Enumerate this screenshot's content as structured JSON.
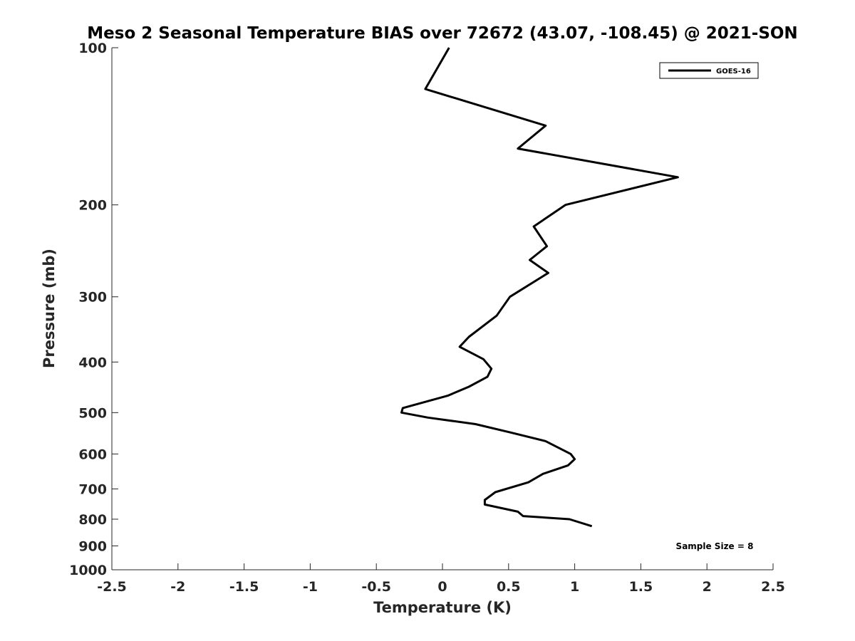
{
  "chart_data": {
    "type": "line",
    "title": "Meso 2 Seasonal Temperature BIAS over 72672 (43.07, -108.45) @ 2021-SON",
    "xlabel": "Temperature (K)",
    "ylabel": "Pressure (mb)",
    "xlim": [
      -2.5,
      2.5
    ],
    "ylim": [
      100,
      1000
    ],
    "yscale": "log",
    "y_reversed": true,
    "x_ticks": [
      "-2.5",
      "-2",
      "-1.5",
      "-1",
      "-0.5",
      "0",
      "0.5",
      "1",
      "1.5",
      "2",
      "2.5"
    ],
    "y_ticks": [
      "100",
      "200",
      "300",
      "400",
      "500",
      "600",
      "700",
      "800",
      "900",
      "1000"
    ],
    "grid": false,
    "legend_position": "top-right",
    "series": [
      {
        "name": "GOES-16",
        "color": "#000000",
        "points": [
          [
            1.13,
            825
          ],
          [
            0.96,
            800
          ],
          [
            0.61,
            789
          ],
          [
            0.57,
            774
          ],
          [
            0.32,
            750
          ],
          [
            0.32,
            735
          ],
          [
            0.4,
            710
          ],
          [
            0.65,
            680
          ],
          [
            0.76,
            655
          ],
          [
            0.95,
            631
          ],
          [
            1.0,
            614
          ],
          [
            0.97,
            600
          ],
          [
            0.78,
            567
          ],
          [
            0.52,
            546
          ],
          [
            0.25,
            526
          ],
          [
            -0.11,
            511
          ],
          [
            -0.31,
            500
          ],
          [
            -0.3,
            490
          ],
          [
            0.04,
            464
          ],
          [
            0.2,
            446
          ],
          [
            0.34,
            427
          ],
          [
            0.37,
            412
          ],
          [
            0.31,
            395
          ],
          [
            0.13,
            374
          ],
          [
            0.2,
            358
          ],
          [
            0.41,
            326
          ],
          [
            0.51,
            300
          ],
          [
            0.8,
            270
          ],
          [
            0.66,
            255
          ],
          [
            0.79,
            240
          ],
          [
            0.69,
            220
          ],
          [
            0.93,
            200
          ],
          [
            1.78,
            177
          ],
          [
            0.57,
            156
          ],
          [
            0.78,
            141
          ],
          [
            -0.13,
            120
          ],
          [
            0.05,
            100
          ]
        ]
      }
    ],
    "annotations": [
      "Sample Size = 8"
    ]
  }
}
